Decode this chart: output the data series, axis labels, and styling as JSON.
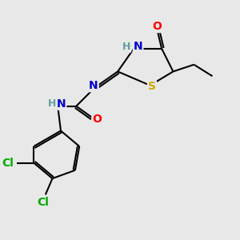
{
  "bg_color": "#e8e8e8",
  "bond_color": "#000000",
  "atom_colors": {
    "N": "#0000cc",
    "O": "#ff0000",
    "S": "#ccaa00",
    "Cl": "#00aa00",
    "H": "#5f9ea0",
    "C": "#000000"
  },
  "figsize": [
    3.0,
    3.0
  ],
  "dpi": 100,
  "lw": 1.5,
  "fontsize": 10
}
